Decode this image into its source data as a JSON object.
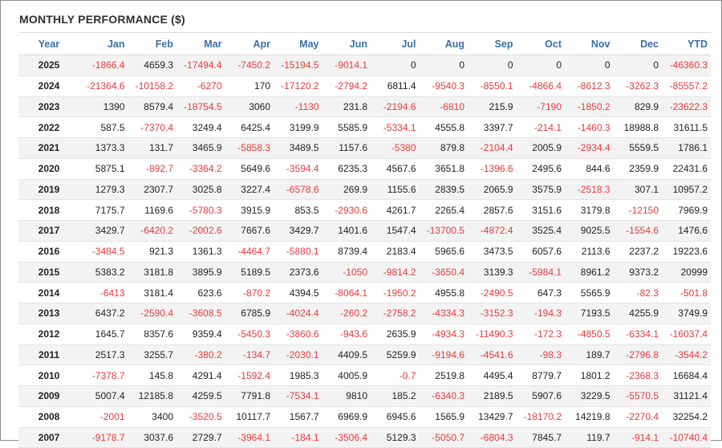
{
  "title": "MONTHLY PERFORMANCE ($)",
  "colors": {
    "header_text": "#3a6fa6",
    "negative": "#e83a3a",
    "positive": "#222222",
    "stripe": "#f3f3f3"
  },
  "columns": [
    "Year",
    "Jan",
    "Feb",
    "Mar",
    "Apr",
    "May",
    "Jun",
    "Jul",
    "Aug",
    "Sep",
    "Oct",
    "Nov",
    "Dec",
    "YTD"
  ],
  "rows": [
    [
      "2025",
      "-1866.4",
      "4659.3",
      "-17494.4",
      "-7450.2",
      "-15194.5",
      "-9014.1",
      "0",
      "0",
      "0",
      "0",
      "0",
      "0",
      "-46360.3"
    ],
    [
      "2024",
      "-21364.6",
      "-10158.2",
      "-6270",
      "170",
      "-17120.2",
      "-2794.2",
      "6811.4",
      "-9540.3",
      "-8550.1",
      "-4866.4",
      "-8612.3",
      "-3262.3",
      "-85557.2"
    ],
    [
      "2023",
      "1390",
      "8579.4",
      "-18754.5",
      "3060",
      "-1130",
      "231.8",
      "-2194.6",
      "-6810",
      "215.9",
      "-7190",
      "-1850.2",
      "829.9",
      "-23622.3"
    ],
    [
      "2022",
      "587.5",
      "-7370.4",
      "3249.4",
      "6425.4",
      "3199.9",
      "5585.9",
      "-5334.1",
      "4555.8",
      "3397.7",
      "-214.1",
      "-1460.3",
      "18988.8",
      "31611.5"
    ],
    [
      "2021",
      "1373.3",
      "131.7",
      "3465.9",
      "-5858.3",
      "3489.5",
      "1157.6",
      "-5380",
      "879.8",
      "-2104.4",
      "2005.9",
      "-2934.4",
      "5559.5",
      "1786.1"
    ],
    [
      "2020",
      "5875.1",
      "-892.7",
      "-3364.2",
      "5649.6",
      "-3594.4",
      "6235.3",
      "4567.6",
      "3651.8",
      "-1396.6",
      "2495.6",
      "844.6",
      "2359.9",
      "22431.6"
    ],
    [
      "2019",
      "1279.3",
      "2307.7",
      "3025.8",
      "3227.4",
      "-6578.6",
      "269.9",
      "1155.6",
      "2839.5",
      "2065.9",
      "3575.9",
      "-2518.3",
      "307.1",
      "10957.2"
    ],
    [
      "2018",
      "7175.7",
      "1169.6",
      "-5780.3",
      "3915.9",
      "853.5",
      "-2930.6",
      "4261.7",
      "2265.4",
      "2857.6",
      "3151.6",
      "3179.8",
      "-12150",
      "7969.9"
    ],
    [
      "2017",
      "3429.7",
      "-6420.2",
      "-2002.6",
      "7667.6",
      "3429.7",
      "1401.6",
      "1547.4",
      "-13700.5",
      "-4872.4",
      "3525.4",
      "9025.5",
      "-1554.6",
      "1476.6"
    ],
    [
      "2016",
      "-3484.5",
      "921.3",
      "1361.3",
      "-4464.7",
      "-5880.1",
      "8739.4",
      "2183.4",
      "5965.6",
      "3473.5",
      "6057.6",
      "2113.6",
      "2237.2",
      "19223.6"
    ],
    [
      "2015",
      "5383.2",
      "3181.8",
      "3895.9",
      "5189.5",
      "2373.6",
      "-1050",
      "-9814.2",
      "-3650.4",
      "3139.3",
      "-5984.1",
      "8961.2",
      "9373.2",
      "20999"
    ],
    [
      "2014",
      "-6413",
      "3181.4",
      "623.6",
      "-870.2",
      "4394.5",
      "-8064.1",
      "-1950.2",
      "4955.8",
      "-2490.5",
      "647.3",
      "5565.9",
      "-82.3",
      "-501.8"
    ],
    [
      "2013",
      "6437.2",
      "-2590.4",
      "-3608.5",
      "6785.9",
      "-4024.4",
      "-260.2",
      "-2758.2",
      "-4334.3",
      "-3152.3",
      "-194.3",
      "7193.5",
      "4255.9",
      "3749.9"
    ],
    [
      "2012",
      "1645.7",
      "8357.6",
      "9359.4",
      "-5450.3",
      "-3860.6",
      "-943.6",
      "2635.9",
      "-4934.3",
      "-11490.3",
      "-172.3",
      "-4850.5",
      "-6334.1",
      "-16037.4"
    ],
    [
      "2011",
      "2517.3",
      "3255.7",
      "-380.2",
      "-134.7",
      "-2030.1",
      "4409.5",
      "5259.9",
      "-9194.6",
      "-4541.6",
      "-98.3",
      "189.7",
      "-2796.8",
      "-3544.2"
    ],
    [
      "2010",
      "-7378.7",
      "145.8",
      "4291.4",
      "-1592.4",
      "1985.3",
      "4005.9",
      "-0.7",
      "2519.8",
      "4495.4",
      "8779.7",
      "1801.2",
      "-2368.3",
      "16684.4"
    ],
    [
      "2009",
      "5007.4",
      "12185.8",
      "4259.5",
      "7791.8",
      "-7534.1",
      "9810",
      "185.2",
      "-6340.3",
      "2189.5",
      "5907.6",
      "3229.5",
      "-5570.5",
      "31121.4"
    ],
    [
      "2008",
      "-2001",
      "3400",
      "-3520.5",
      "10117.7",
      "1567.7",
      "6969.9",
      "6945.6",
      "1565.9",
      "13429.7",
      "-18170.2",
      "14219.8",
      "-2270.4",
      "32254.2"
    ],
    [
      "2007",
      "-9178.7",
      "3037.6",
      "2729.7",
      "-3964.1",
      "-184.1",
      "-3506.4",
      "5129.3",
      "-5050.7",
      "-6804.3",
      "7845.7",
      "119.7",
      "-914.1",
      "-10740.4"
    ]
  ]
}
